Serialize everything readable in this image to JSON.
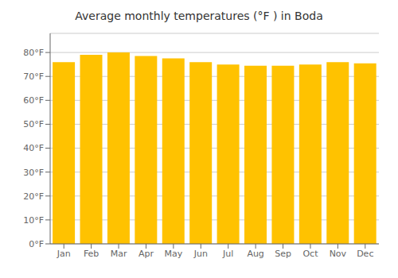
{
  "chart_data": {
    "type": "bar",
    "title": "Average monthly temperatures (°F ) in Boda",
    "categories": [
      "Jan",
      "Feb",
      "Mar",
      "Apr",
      "May",
      "Jun",
      "Jul",
      "Aug",
      "Sep",
      "Oct",
      "Nov",
      "Dec"
    ],
    "values": [
      76,
      79,
      80,
      78.5,
      77.5,
      76,
      75,
      74.5,
      74.5,
      75,
      76,
      75.5
    ],
    "color": "#FFC200",
    "ylim": [
      0,
      88
    ],
    "yticks": [
      {
        "value": 0,
        "label": "0°F"
      },
      {
        "value": 10,
        "label": "10°F"
      },
      {
        "value": 20,
        "label": "20°F"
      },
      {
        "value": 30,
        "label": "30°F"
      },
      {
        "value": 40,
        "label": "40°F"
      },
      {
        "value": 50,
        "label": "50°F"
      },
      {
        "value": 60,
        "label": "60°F"
      },
      {
        "value": 70,
        "label": "70°F"
      },
      {
        "value": 80,
        "label": "80°F"
      }
    ],
    "grid": true
  }
}
